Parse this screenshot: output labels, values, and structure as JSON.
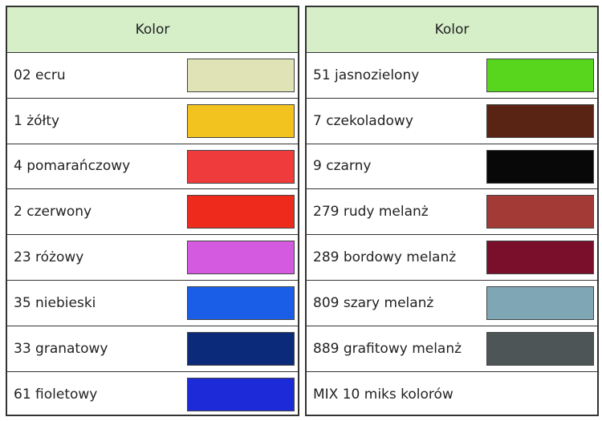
{
  "tables": [
    {
      "header": "Kolor",
      "rows": [
        {
          "label": "02 ecru",
          "swatch": "#dfe3b5"
        },
        {
          "label": "1 żółty",
          "swatch": "#f2c21e"
        },
        {
          "label": "4 pomarańczowy",
          "swatch": "#ef3b3b"
        },
        {
          "label": "2 czerwony",
          "swatch": "#ee2a1c"
        },
        {
          "label": "23 różowy",
          "swatch": "#d45be0"
        },
        {
          "label": "35 niebieski",
          "swatch": "#1a5ee8"
        },
        {
          "label": "33 granatowy",
          "swatch": "#0c2a7a"
        },
        {
          "label": "61 fioletowy",
          "swatch": "#1c2ad8"
        }
      ]
    },
    {
      "header": "Kolor",
      "rows": [
        {
          "label": "51 jasnozielony",
          "swatch": "#58d61e"
        },
        {
          "label": "7 czekoladowy",
          "swatch": "#5a2414"
        },
        {
          "label": "9 czarny",
          "swatch": "#080808"
        },
        {
          "label": "279 rudy melanż",
          "swatch": "#a33a36"
        },
        {
          "label": "289 bordowy melanż",
          "swatch": "#7a0f2c"
        },
        {
          "label": "809 szary melanż",
          "swatch": "#7fa6b4"
        },
        {
          "label": "889 grafitowy melanż",
          "swatch": "#4d5556"
        },
        {
          "label": "MIX 10 miks kolorów"
        }
      ]
    }
  ]
}
